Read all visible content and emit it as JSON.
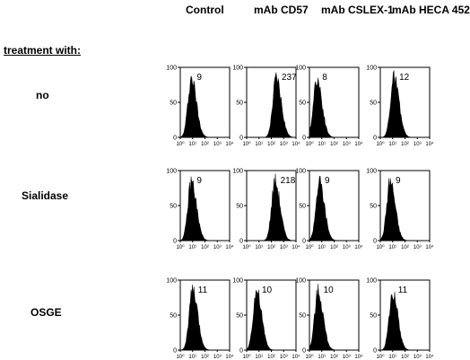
{
  "columns": [
    "Control",
    "mAb CD57",
    "mAb CSLEX-1",
    "mAb HECA 452"
  ],
  "section_label": "treatment    with:",
  "rows": [
    "no",
    "Sialidase",
    "OSGE"
  ],
  "y_ticks": [
    "100",
    "50",
    "0"
  ],
  "x_ticks": [
    "10⁰",
    "10¹",
    "10²",
    "10³",
    "10⁴"
  ],
  "values": [
    [
      "9",
      "237",
      "8",
      "12"
    ],
    [
      "9",
      "218",
      "9",
      "9"
    ],
    [
      "11",
      "10",
      "10",
      "11"
    ]
  ],
  "peak_positions_log10": [
    [
      0.9,
      2.4,
      0.6,
      1.1
    ],
    [
      0.9,
      2.3,
      0.8,
      0.8
    ],
    [
      1.0,
      0.8,
      0.7,
      1.0
    ]
  ]
}
